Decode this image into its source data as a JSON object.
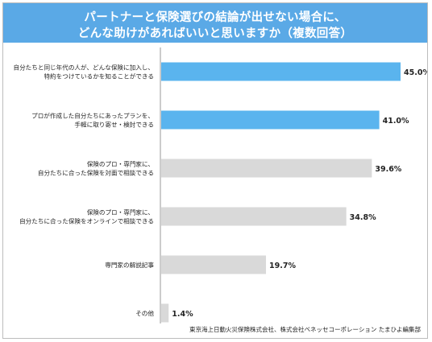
{
  "title": {
    "line1": "パートナーと保険選びの結論が出せない場合に、",
    "line2": "どんな助けがあればいいと思いますか（複数回答）"
  },
  "source": "東京海上日動火災保険株式会社、株式会社ベネッセコーポレーション たまひよ編集部",
  "colors": {
    "title_bg": "#5aa9e6",
    "bar_highlight": "#5ab4ee",
    "bar_default": "#d9d9d9",
    "axis": "#9a9a9a"
  },
  "chart_data": {
    "type": "bar",
    "orientation": "horizontal",
    "categories": [
      [
        "自分たちと同じ年代の人が、どんな保険に加入し、",
        "特約をつけているかを知ることができる"
      ],
      [
        "プロが作成した自分たちにあったプランを、",
        "手軽に取り寄せ・検討できる"
      ],
      [
        "保険のプロ・専門家に、",
        "自分たちに合った保険を対面で相談できる"
      ],
      [
        "保険のプロ・専門家に、",
        "自分たちに合った保険をオンラインで相談できる"
      ],
      [
        "専門家の解説記事"
      ],
      [
        "その他"
      ]
    ],
    "values": [
      45.0,
      41.0,
      39.6,
      34.8,
      19.7,
      1.4
    ],
    "value_labels": [
      "45.0%",
      "41.0%",
      "39.6%",
      "34.8%",
      "19.7%",
      "1.4%"
    ],
    "highlighted": [
      true,
      true,
      false,
      false,
      false,
      false
    ],
    "xlim": [
      0,
      50
    ],
    "grid": false,
    "legend": "none"
  }
}
